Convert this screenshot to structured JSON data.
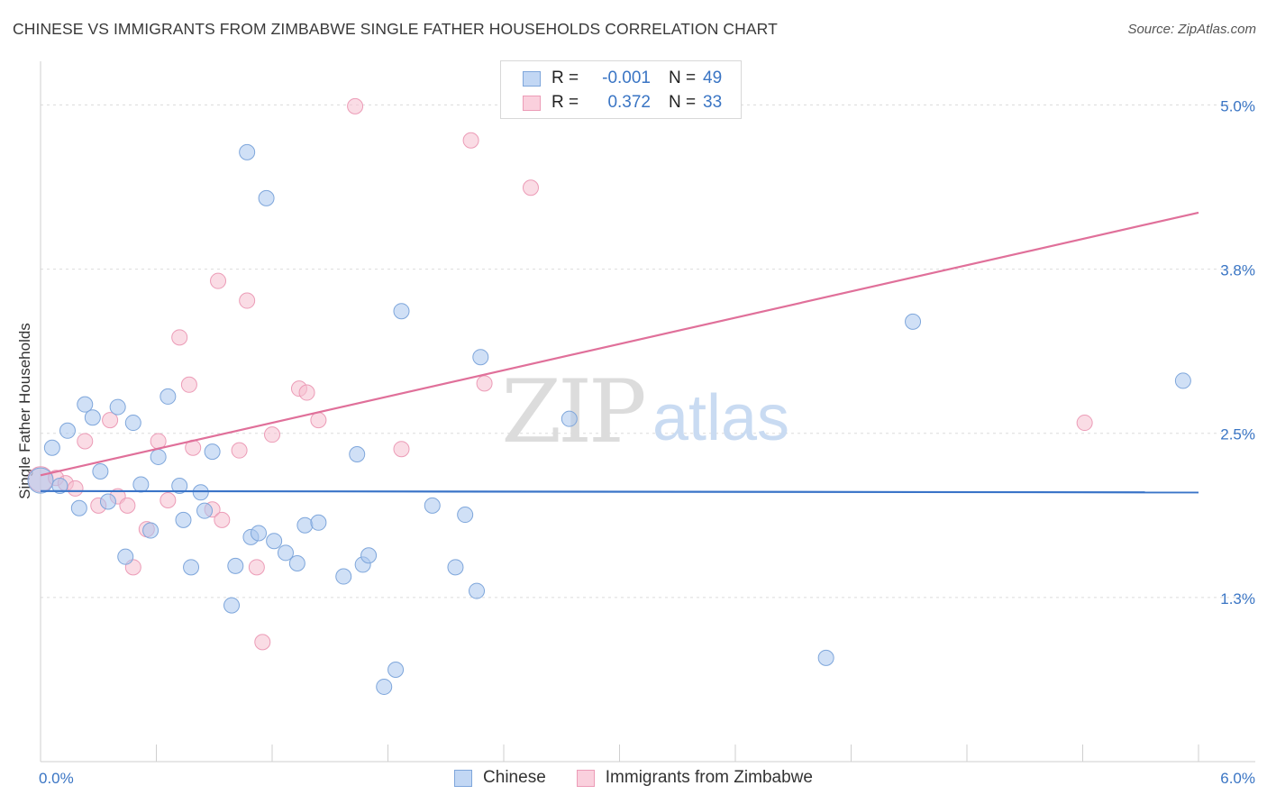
{
  "chart_data": {
    "type": "scatter",
    "title": "CHINESE VS IMMIGRANTS FROM ZIMBABWE SINGLE FATHER HOUSEHOLDS CORRELATION CHART",
    "source": "Source: ZipAtlas.com",
    "ylabel": "Single Father Households",
    "xlabel": "",
    "xlim": [
      0,
      6
    ],
    "ylim": [
      0,
      5.25
    ],
    "x_tick_labels": [
      "0.0%",
      "6.0%"
    ],
    "y_ticks": [
      {
        "value": 1.25,
        "label": "1.3%"
      },
      {
        "value": 2.5,
        "label": "2.5%"
      },
      {
        "value": 3.75,
        "label": "3.8%"
      },
      {
        "value": 5.0,
        "label": "5.0%"
      }
    ],
    "watermark": {
      "zip": "ZIP",
      "atlas": "atlas"
    },
    "legend": {
      "r_label": "R =",
      "n_label": "N =",
      "entries": [
        {
          "name": "Chinese",
          "r": "-0.001",
          "n": "49"
        },
        {
          "name": "Immigrants from Zimbabwe",
          "r": "0.372",
          "n": "33"
        }
      ]
    },
    "series": [
      {
        "name": "Chinese",
        "color": "#a9c7ef",
        "stroke": "#7ea6db",
        "line_color": "#3a74c8",
        "trend": {
          "x0": 0.0,
          "y0": 2.06,
          "x1": 6.0,
          "y1": 2.05
        },
        "points": [
          [
            0.0,
            2.14
          ],
          [
            0.06,
            2.39
          ],
          [
            0.1,
            2.1
          ],
          [
            0.14,
            2.52
          ],
          [
            0.2,
            1.93
          ],
          [
            0.23,
            2.72
          ],
          [
            0.27,
            2.62
          ],
          [
            0.31,
            2.21
          ],
          [
            0.35,
            1.98
          ],
          [
            0.4,
            2.7
          ],
          [
            0.44,
            1.56
          ],
          [
            0.48,
            2.58
          ],
          [
            0.52,
            2.11
          ],
          [
            0.57,
            1.76
          ],
          [
            0.61,
            2.32
          ],
          [
            0.66,
            2.78
          ],
          [
            0.72,
            2.1
          ],
          [
            0.74,
            1.84
          ],
          [
            0.78,
            1.48
          ],
          [
            0.83,
            2.05
          ],
          [
            0.85,
            1.91
          ],
          [
            0.89,
            2.36
          ],
          [
            0.99,
            1.19
          ],
          [
            1.01,
            1.49
          ],
          [
            1.07,
            4.64
          ],
          [
            1.09,
            1.71
          ],
          [
            1.13,
            1.74
          ],
          [
            1.17,
            4.29
          ],
          [
            1.21,
            1.68
          ],
          [
            1.27,
            1.59
          ],
          [
            1.33,
            1.51
          ],
          [
            1.37,
            1.8
          ],
          [
            1.44,
            1.82
          ],
          [
            1.57,
            1.41
          ],
          [
            1.64,
            2.34
          ],
          [
            1.67,
            1.5
          ],
          [
            1.7,
            1.57
          ],
          [
            1.78,
            0.57
          ],
          [
            1.84,
            0.7
          ],
          [
            1.87,
            3.43
          ],
          [
            2.03,
            1.95
          ],
          [
            2.15,
            1.48
          ],
          [
            2.2,
            1.88
          ],
          [
            2.26,
            1.3
          ],
          [
            2.28,
            3.08
          ],
          [
            2.74,
            2.61
          ],
          [
            4.07,
            0.79
          ],
          [
            4.52,
            3.35
          ],
          [
            5.92,
            2.9
          ]
        ]
      },
      {
        "name": "Immigrants from Zimbabwe",
        "color": "#f6bfd0",
        "stroke": "#ec9cb7",
        "line_color": "#e0709a",
        "trend": {
          "x0": 0.0,
          "y0": 2.18,
          "x1": 6.0,
          "y1": 4.18
        },
        "points": [
          [
            0.0,
            2.15
          ],
          [
            0.08,
            2.16
          ],
          [
            0.13,
            2.12
          ],
          [
            0.18,
            2.08
          ],
          [
            0.23,
            2.44
          ],
          [
            0.3,
            1.95
          ],
          [
            0.36,
            2.6
          ],
          [
            0.4,
            2.02
          ],
          [
            0.45,
            1.95
          ],
          [
            0.48,
            1.48
          ],
          [
            0.55,
            1.77
          ],
          [
            0.61,
            2.44
          ],
          [
            0.66,
            1.99
          ],
          [
            0.72,
            3.23
          ],
          [
            0.77,
            2.87
          ],
          [
            0.79,
            2.39
          ],
          [
            0.92,
            3.66
          ],
          [
            0.89,
            1.92
          ],
          [
            0.94,
            1.84
          ],
          [
            1.03,
            2.37
          ],
          [
            1.07,
            3.51
          ],
          [
            1.12,
            1.48
          ],
          [
            1.15,
            0.91
          ],
          [
            1.2,
            2.49
          ],
          [
            1.34,
            2.84
          ],
          [
            1.38,
            2.81
          ],
          [
            1.44,
            2.6
          ],
          [
            1.63,
            4.99
          ],
          [
            1.87,
            2.38
          ],
          [
            2.23,
            4.73
          ],
          [
            2.3,
            2.88
          ],
          [
            2.54,
            4.37
          ],
          [
            5.41,
            2.58
          ]
        ]
      }
    ]
  }
}
